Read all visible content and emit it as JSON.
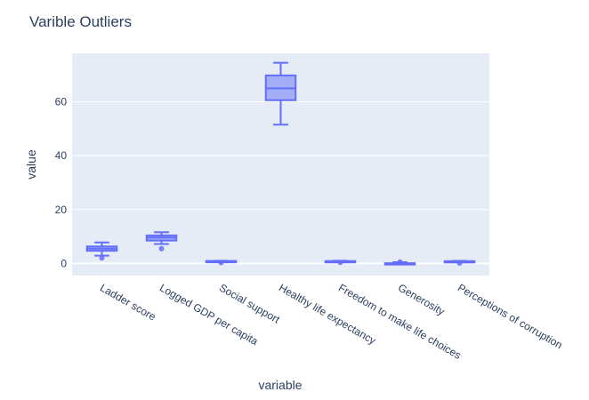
{
  "chart_data": {
    "type": "box",
    "title": "Varible Outliers",
    "xlabel": "variable",
    "ylabel": "value",
    "ylim": [
      -4.5,
      78
    ],
    "yticks": [
      0,
      20,
      40,
      60
    ],
    "grid": true,
    "colors": {
      "plot_bg": "#e5ecf6",
      "grid": "#ffffff",
      "box_line": "#636efa",
      "box_fill": "#636efa",
      "text": "#2a3f5f"
    },
    "categories": [
      "Ladder score",
      "Logged GDP per capita",
      "Social support",
      "Healthy life expectancy",
      "Freedom to make life choices",
      "Generosity",
      "Perceptions of corruption"
    ],
    "boxes": [
      {
        "category": "Ladder score",
        "min": 2.9,
        "q1": 4.7,
        "median": 5.5,
        "q3": 6.3,
        "max": 7.8,
        "outliers": [
          2.0
        ]
      },
      {
        "category": "Logged GDP per capita",
        "min": 7.2,
        "q1": 8.5,
        "median": 9.6,
        "q3": 10.4,
        "max": 11.6,
        "outliers": [
          5.5
        ]
      },
      {
        "category": "Social support",
        "min": 0.5,
        "q1": 0.75,
        "median": 0.83,
        "q3": 0.9,
        "max": 0.98,
        "outliers": [
          0.3
        ]
      },
      {
        "category": "Healthy life expectancy",
        "min": 51.5,
        "q1": 60.6,
        "median": 65.0,
        "q3": 69.8,
        "max": 74.5,
        "outliers": []
      },
      {
        "category": "Freedom to make life choices",
        "min": 0.55,
        "q1": 0.73,
        "median": 0.81,
        "q3": 0.87,
        "max": 0.97,
        "outliers": [
          0.38
        ]
      },
      {
        "category": "Generosity",
        "min": -0.3,
        "q1": -0.13,
        "median": -0.03,
        "q3": 0.08,
        "max": 0.45,
        "outliers": [
          0.55
        ]
      },
      {
        "category": "Perceptions of corruption",
        "min": 0.45,
        "q1": 0.69,
        "median": 0.78,
        "q3": 0.84,
        "max": 0.94,
        "outliers": [
          0.1
        ]
      }
    ]
  }
}
